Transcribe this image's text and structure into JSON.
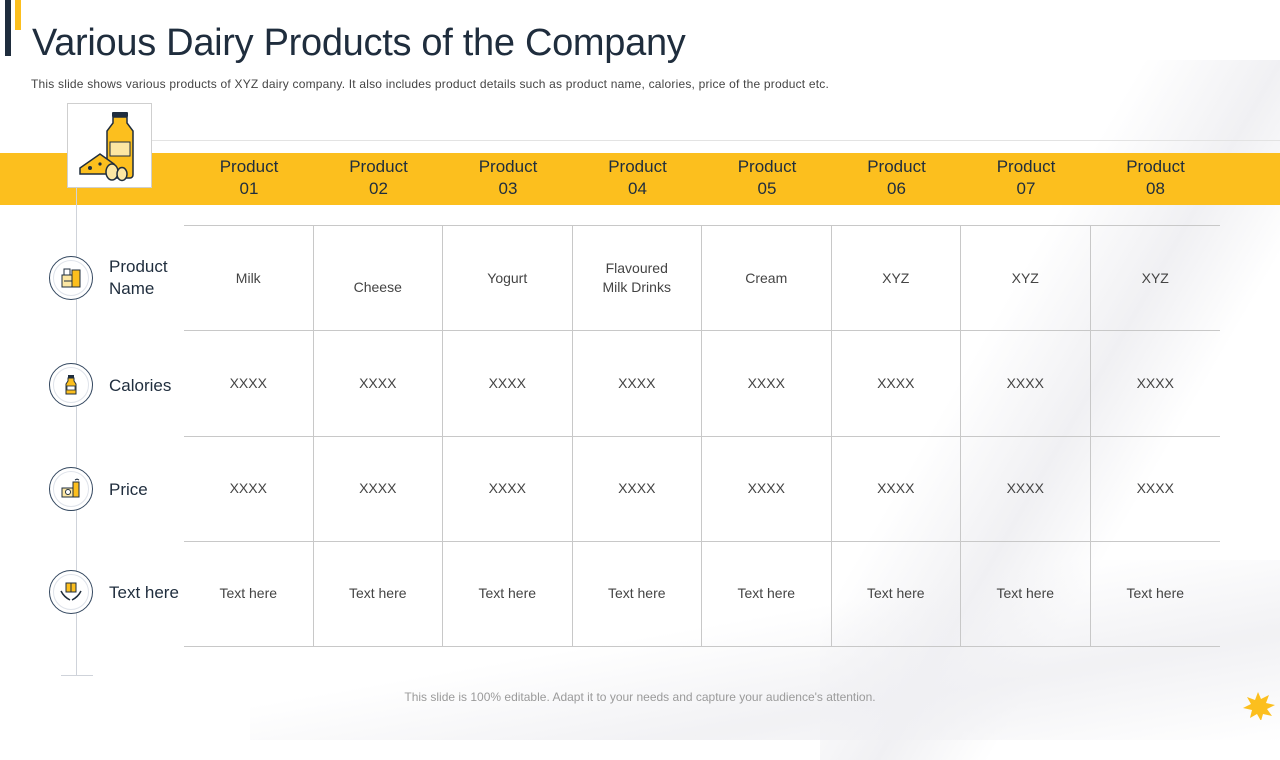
{
  "slide": {
    "title": "Various Dairy Products of the Company",
    "subtitle": "This slide shows various  products of XYZ dairy company. It also includes product details such as product name, calories, price of the product etc.",
    "footer": "This slide is 100% editable. Adapt it to your needs and capture your audience's attention."
  },
  "colors": {
    "accent": "#fcbf1e",
    "dark": "#1f2d3d",
    "grid": "#c8c8c8"
  },
  "table": {
    "columns": [
      {
        "line1": "Product",
        "line2": "01"
      },
      {
        "line1": "Product",
        "line2": "02"
      },
      {
        "line1": "Product",
        "line2": "03"
      },
      {
        "line1": "Product",
        "line2": "04"
      },
      {
        "line1": "Product",
        "line2": "05"
      },
      {
        "line1": "Product",
        "line2": "06"
      },
      {
        "line1": "Product",
        "line2": "07"
      },
      {
        "line1": "Product",
        "line2": "08"
      }
    ],
    "rows": [
      {
        "label1": "Product",
        "label2": "Name",
        "icon": "product-name-icon",
        "cells": [
          "Milk",
          "Cheese",
          "Yogurt",
          "Flavoured Milk Drinks",
          "Cream",
          "XYZ",
          "XYZ",
          "XYZ"
        ]
      },
      {
        "label1": "Calories",
        "label2": "",
        "icon": "milk-bottle-icon",
        "cells": [
          "XXXX",
          "XXXX",
          "XXXX",
          "XXXX",
          "XXXX",
          "XXXX",
          "XXXX",
          "XXXX"
        ]
      },
      {
        "label1": "Price",
        "label2": "",
        "icon": "price-icon",
        "cells": [
          "XXXX",
          "XXXX",
          "XXXX",
          "XXXX",
          "XXXX",
          "XXXX",
          "XXXX",
          "XXXX"
        ]
      },
      {
        "label1": "Text here",
        "label2": "",
        "icon": "hands-box-icon",
        "cells": [
          "Text here",
          "Text here",
          "Text here",
          "Text here",
          "Text here",
          "Text here",
          "Text here",
          "Text here"
        ]
      }
    ]
  }
}
